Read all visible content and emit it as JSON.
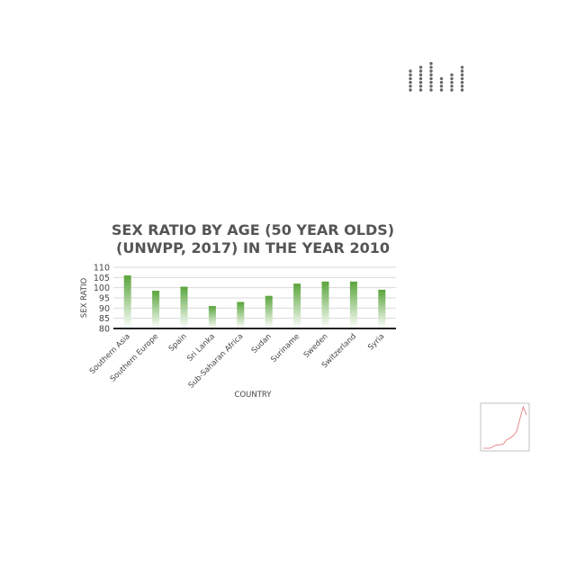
{
  "chart_data": {
    "type": "bar",
    "title_lines": [
      "SEX RATIO BY AGE (50 YEAR OLDS)",
      "(UNWPP, 2017) IN THE YEAR 2010"
    ],
    "xlabel": "COUNTRY",
    "ylabel": "SEX RATIO",
    "ylim": [
      80,
      110
    ],
    "yticks": [
      "80",
      "85",
      "90",
      "95",
      "100",
      "105",
      "110"
    ],
    "categories": [
      "Southern Asia",
      "Southern Europe",
      "Spain",
      "Sri Lanka",
      "Sub-Saharan Africa",
      "Sudan",
      "Suriname",
      "Sweden",
      "Switzerland",
      "Syria"
    ],
    "values": [
      106,
      98.5,
      100.5,
      91,
      93,
      96,
      102,
      103,
      103,
      99
    ],
    "grid": true,
    "legend": "none",
    "colors": {
      "bar_top": "#5aa53c",
      "bar_bottom": "#ffffff",
      "grid": "#d9d9d9",
      "axis": "#222222",
      "title": "#555555"
    }
  },
  "thumbnails": {
    "dot_plot": {
      "dot_counts": [
        6,
        7,
        8,
        4,
        5,
        7
      ],
      "color": "#666666"
    },
    "line_plot": {
      "values": [
        1,
        1,
        1,
        1.2,
        1.4,
        1.4,
        1.5,
        2,
        2.2,
        2.5,
        3,
        4.5,
        6,
        5
      ],
      "color": "#e07070"
    }
  }
}
